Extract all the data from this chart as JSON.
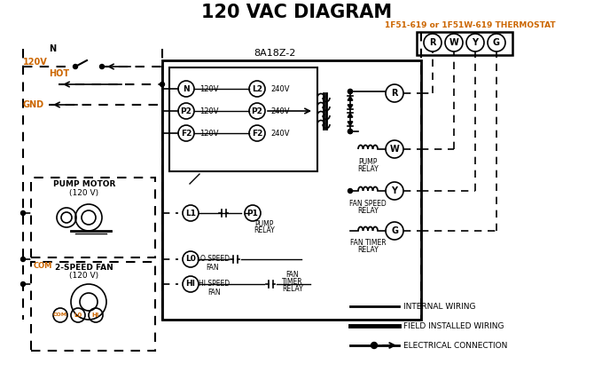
{
  "title": "120 VAC DIAGRAM",
  "bg_color": "#ffffff",
  "line_color": "#000000",
  "orange_color": "#cc6600",
  "thermostat_label": "1F51-619 or 1F51W-619 THERMOSTAT",
  "board_label": "8A18Z-2",
  "thermostat_terminals": [
    "R",
    "W",
    "Y",
    "G"
  ],
  "input_left_labels": [
    "N",
    "P2",
    "F2"
  ],
  "input_right_labels": [
    "L2",
    "P2",
    "F2"
  ],
  "input_left_volts": [
    "120V",
    "120V",
    "120V"
  ],
  "input_right_volts": [
    "240V",
    "240V",
    "240V"
  ],
  "relay_labels": [
    "R",
    "W",
    "Y",
    "G"
  ],
  "legend_items": [
    "INTERNAL WIRING",
    "FIELD INSTALLED WIRING",
    "ELECTRICAL CONNECTION"
  ]
}
